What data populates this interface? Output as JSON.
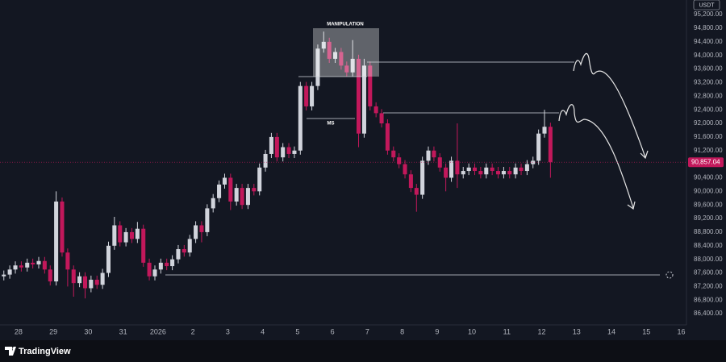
{
  "chart_data": {
    "type": "candlestick",
    "currency": "USDT",
    "annotations": {
      "manipulation": "MANIPULATION",
      "ms": "MS"
    },
    "up_color": "#d1d4dc",
    "down_color": "#c2185b",
    "xlim": [
      -0.53,
      19.15
    ],
    "ylim": [
      86070,
      95630
    ],
    "xticks": [
      {
        "value": 0,
        "label": "28"
      },
      {
        "value": 1,
        "label": "29"
      },
      {
        "value": 2,
        "label": "30"
      },
      {
        "value": 3,
        "label": "31"
      },
      {
        "value": 4,
        "label": "2026"
      },
      {
        "value": 5,
        "label": "2"
      },
      {
        "value": 6,
        "label": "3"
      },
      {
        "value": 7,
        "label": "4"
      },
      {
        "value": 8,
        "label": "5"
      },
      {
        "value": 9,
        "label": "6"
      },
      {
        "value": 10,
        "label": "7"
      },
      {
        "value": 11,
        "label": "8"
      },
      {
        "value": 12,
        "label": "9"
      },
      {
        "value": 13,
        "label": "10"
      },
      {
        "value": 14,
        "label": "11"
      },
      {
        "value": 15,
        "label": "12"
      },
      {
        "value": 16,
        "label": "13"
      },
      {
        "value": 17,
        "label": "14"
      },
      {
        "value": 18,
        "label": "15"
      },
      {
        "value": 19,
        "label": "16"
      }
    ],
    "yticks": [
      {
        "value": 86400,
        "label": "86,400.00"
      },
      {
        "value": 86800,
        "label": "86,800.00"
      },
      {
        "value": 87200,
        "label": "87,200.00"
      },
      {
        "value": 87600,
        "label": "87,600.00"
      },
      {
        "value": 88000,
        "label": "88,000.00"
      },
      {
        "value": 88400,
        "label": "88,400.00"
      },
      {
        "value": 88800,
        "label": "88,800.00"
      },
      {
        "value": 89200,
        "label": "89,200.00"
      },
      {
        "value": 89600,
        "label": "89,600.00"
      },
      {
        "value": 90000,
        "label": "90,000.00"
      },
      {
        "value": 90400,
        "label": "90,400.00"
      },
      {
        "value": 91200,
        "label": "91,200.00"
      },
      {
        "value": 91600,
        "label": "91,600.00"
      },
      {
        "value": 92000,
        "label": "92,000.00"
      },
      {
        "value": 92400,
        "label": "92,400.00"
      },
      {
        "value": 92800,
        "label": "92,800.00"
      },
      {
        "value": 93200,
        "label": "93,200.00"
      },
      {
        "value": 93600,
        "label": "93,600.00"
      },
      {
        "value": 94000,
        "label": "94,000.00"
      },
      {
        "value": 94400,
        "label": "94,400.00"
      },
      {
        "value": 94800,
        "label": "94,800.00"
      },
      {
        "value": 95200,
        "label": "95,200.00"
      }
    ],
    "last_price": {
      "value": 90857.04,
      "label": "90,857.04"
    },
    "x": [
      -0.42,
      -0.25,
      -0.09,
      0.08,
      0.25,
      0.41,
      0.58,
      0.75,
      0.91,
      1.08,
      1.25,
      1.41,
      1.58,
      1.75,
      1.91,
      2.08,
      2.25,
      2.41,
      2.58,
      2.75,
      2.91,
      3.08,
      3.25,
      3.41,
      3.58,
      3.75,
      3.91,
      4.08,
      4.25,
      4.41,
      4.58,
      4.75,
      4.91,
      5.08,
      5.25,
      5.41,
      5.58,
      5.75,
      5.91,
      6.08,
      6.25,
      6.41,
      6.58,
      6.75,
      6.91,
      7.08,
      7.25,
      7.41,
      7.58,
      7.75,
      7.91,
      8.08,
      8.25,
      8.41,
      8.58,
      8.75,
      8.91,
      9.08,
      9.25,
      9.41,
      9.58,
      9.75,
      9.91,
      10.08,
      10.25,
      10.41,
      10.58,
      10.75,
      10.91,
      11.08,
      11.25,
      11.41,
      11.58,
      11.75,
      11.91,
      12.08,
      12.25,
      12.41,
      12.58,
      12.75,
      12.91,
      13.08,
      13.25,
      13.41,
      13.58,
      13.75,
      13.91,
      14.08,
      14.25,
      14.41,
      14.58,
      14.75,
      14.91,
      15.08,
      15.25
    ],
    "open": [
      87500,
      87550,
      87700,
      87820,
      87760,
      87900,
      87850,
      87950,
      87700,
      87350,
      89700,
      88200,
      87700,
      87300,
      87500,
      87150,
      87400,
      87250,
      87600,
      88400,
      89000,
      88500,
      88800,
      88600,
      88900,
      87900,
      87500,
      87700,
      87900,
      87800,
      88000,
      88300,
      88200,
      88600,
      89000,
      88800,
      89500,
      89800,
      90200,
      90400,
      89700,
      90100,
      89600,
      90100,
      90000,
      90700,
      91100,
      91600,
      91000,
      91300,
      91100,
      91200,
      93100,
      92500,
      93100,
      94200,
      94400,
      93900,
      94100,
      93700,
      93500,
      93900,
      91700,
      93700,
      92500,
      92300,
      92000,
      91200,
      91000,
      90800,
      90500,
      90100,
      89900,
      90900,
      91200,
      91000,
      90700,
      90400,
      90900,
      90500,
      90600,
      90700,
      90600,
      90500,
      90700,
      90600,
      90500,
      90600,
      90500,
      90700,
      90600,
      90800,
      90900,
      91700,
      91900
    ],
    "high": [
      87670,
      87820,
      87940,
      87940,
      88020,
      88020,
      88070,
      88070,
      87820,
      90000,
      89820,
      88320,
      87820,
      87620,
      87620,
      87520,
      87520,
      87720,
      88520,
      89250,
      89120,
      88920,
      88920,
      89100,
      89020,
      88020,
      87820,
      88020,
      88020,
      88120,
      88420,
      88420,
      88720,
      89120,
      89120,
      89620,
      89920,
      90320,
      90520,
      90520,
      90220,
      90220,
      90220,
      90220,
      90820,
      91220,
      91720,
      91720,
      91420,
      91420,
      91320,
      93220,
      93220,
      93220,
      94320,
      94700,
      94520,
      94220,
      94220,
      93820,
      94450,
      94020,
      93900,
      93820,
      92620,
      92420,
      92120,
      91320,
      91120,
      90920,
      90620,
      90220,
      91020,
      91320,
      91320,
      91120,
      90820,
      91020,
      92000,
      90720,
      90820,
      90820,
      90720,
      90820,
      90820,
      90720,
      90720,
      90720,
      90820,
      90820,
      90920,
      91020,
      91820,
      92400,
      92020
    ],
    "low": [
      87380,
      87430,
      87580,
      87640,
      87640,
      87730,
      87730,
      87580,
      87230,
      87230,
      88080,
      87200,
      86900,
      87180,
      86850,
      87030,
      87130,
      87130,
      87480,
      88280,
      88380,
      88380,
      88480,
      88480,
      87780,
      87380,
      87380,
      87580,
      87680,
      87680,
      87880,
      88080,
      88080,
      88480,
      88500,
      88680,
      89380,
      89680,
      90080,
      89450,
      89580,
      89480,
      89480,
      89880,
      89880,
      90580,
      90980,
      90880,
      90880,
      90980,
      90980,
      91080,
      92380,
      92380,
      92980,
      94080,
      93780,
      93780,
      93580,
      93380,
      93380,
      91300,
      91580,
      92380,
      92180,
      91880,
      91080,
      90880,
      90680,
      90380,
      89980,
      89400,
      89780,
      90780,
      90880,
      90580,
      90000,
      90280,
      90100,
      90380,
      90480,
      90480,
      90380,
      90380,
      90480,
      90380,
      90380,
      90380,
      90380,
      90480,
      90480,
      90680,
      90780,
      91580,
      90400
    ],
    "close": [
      87550,
      87700,
      87820,
      87760,
      87900,
      87850,
      87950,
      87700,
      87350,
      89700,
      88200,
      87700,
      87300,
      87500,
      87150,
      87400,
      87250,
      87600,
      88400,
      89000,
      88500,
      88800,
      88600,
      88900,
      87900,
      87500,
      87700,
      87900,
      87800,
      88000,
      88300,
      88200,
      88600,
      89000,
      88800,
      89500,
      89800,
      90200,
      90400,
      89700,
      90100,
      89600,
      90100,
      90000,
      90700,
      91100,
      91600,
      91000,
      91300,
      91100,
      91200,
      93100,
      92500,
      93100,
      94200,
      94400,
      93900,
      94100,
      93700,
      93500,
      93900,
      91700,
      93700,
      92500,
      92300,
      92000,
      91200,
      91000,
      90800,
      90500,
      90100,
      89900,
      90900,
      91200,
      91000,
      90700,
      90400,
      90900,
      90500,
      90600,
      90700,
      90600,
      90500,
      90700,
      90600,
      90500,
      90600,
      90500,
      90700,
      90600,
      90800,
      90900,
      91700,
      91900,
      90857.04
    ]
  },
  "footer": {
    "brand": "TradingView"
  }
}
